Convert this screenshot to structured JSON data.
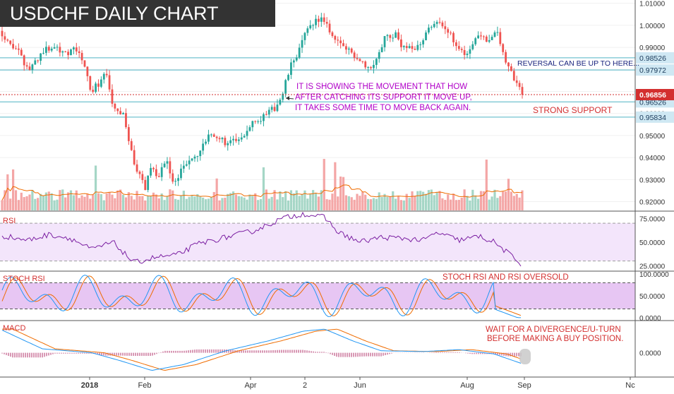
{
  "title": "USDCHF DAILY CHART",
  "colors": {
    "bull": "#26a69a",
    "bear": "#ef5350",
    "bull_vol": "#a5d6c6",
    "bear_vol": "#f4a6a6",
    "hline": "#4fb3c4",
    "price_tag": "#d32f2f",
    "level_tag": "#cfe8f3",
    "rsi_line": "#7b1fa2",
    "rsi_band": "#f3e5fb",
    "stoch_band": "#e7c6f3",
    "stoch_k": "#2196f3",
    "stoch_d": "#ef6c00",
    "macd_line": "#2196f3",
    "signal_line": "#ef6c00",
    "histogram": "#b0306a",
    "annotation_purple": "#b000c8",
    "annotation_red": "#d32f2f",
    "annotation_navy": "#1a237e"
  },
  "annotations": {
    "movement_line1": "IT IS SHOWING THE MOVEMENT THAT HOW",
    "movement_line2": "AFTER CATCHING ITS SUPPORT IT MOVE UP,",
    "movement_line3": "IT TAKES SOME TIME TO MOVE BACK AGAIN.",
    "reversal": "REVERSAL CAN BE UP TO HERE...",
    "strong_support": "STRONG SUPPORT",
    "stoch_note": "STOCH RSI AND RSI OVERSOLD",
    "macd_line1": "WAIT FOR A DIVERGENCE/U-TURN",
    "macd_line2": "BEFORE MAKING A BUY POSITION."
  },
  "chart_data": [
    {
      "type": "candlestick",
      "title": "USDCHF DAILY CHART",
      "ylim": [
        0.916,
        1.0115
      ],
      "y_ticks": [
        "1.01000",
        "1.00000",
        "0.99000",
        "0.98000",
        "0.97000",
        "0.96000",
        "0.95000",
        "0.94000",
        "0.93000",
        "0.92000"
      ],
      "x_ticks": [
        "2018",
        "Feb",
        "Apr",
        "2",
        "Jun",
        "Aug",
        "Sep",
        "Nc"
      ],
      "price_path": [
        [
          0,
          0.9975
        ],
        [
          10,
          0.994
        ],
        [
          25,
          0.988
        ],
        [
          40,
          0.9795
        ],
        [
          60,
          0.988
        ],
        [
          75,
          0.9905
        ],
        [
          95,
          0.988
        ],
        [
          110,
          0.989
        ],
        [
          120,
          0.98
        ],
        [
          130,
          0.97
        ],
        [
          150,
          0.978
        ],
        [
          162,
          0.961
        ],
        [
          175,
          0.959
        ],
        [
          185,
          0.944
        ],
        [
          195,
          0.933
        ],
        [
          205,
          0.926
        ],
        [
          215,
          0.937
        ],
        [
          225,
          0.931
        ],
        [
          235,
          0.94
        ],
        [
          245,
          0.928
        ],
        [
          260,
          0.936
        ],
        [
          280,
          0.941
        ],
        [
          300,
          0.951
        ],
        [
          320,
          0.947
        ],
        [
          340,
          0.947
        ],
        [
          360,
          0.958
        ],
        [
          375,
          0.958
        ],
        [
          390,
          0.963
        ],
        [
          400,
          0.968
        ],
        [
          410,
          0.98
        ],
        [
          425,
          0.99
        ],
        [
          440,
          1.001
        ],
        [
          455,
          1.003
        ],
        [
          470,
          0.996
        ],
        [
          490,
          0.989
        ],
        [
          510,
          0.985
        ],
        [
          525,
          0.98
        ],
        [
          545,
          0.994
        ],
        [
          560,
          0.996
        ],
        [
          575,
          0.988
        ],
        [
          595,
          0.992
        ],
        [
          615,
          1.002
        ],
        [
          630,
          0.998
        ],
        [
          645,
          0.993
        ],
        [
          660,
          0.986
        ],
        [
          675,
          0.996
        ],
        [
          690,
          0.994
        ],
        [
          705,
          0.996
        ],
        [
          715,
          0.986
        ],
        [
          725,
          0.978
        ],
        [
          740,
          0.9685
        ]
      ],
      "horizontal_levels": [
        {
          "value": 0.98526,
          "label": "0.98526"
        },
        {
          "value": 0.97972,
          "label": "0.97972"
        },
        {
          "value": 0.96526,
          "label": "0.96526"
        },
        {
          "value": 0.95834,
          "label": "0.95834"
        }
      ],
      "last_price": {
        "value": 0.96856,
        "label": "0.96856"
      }
    },
    {
      "type": "line",
      "title": "RSI",
      "ylim": [
        20,
        82
      ],
      "y_ticks": [
        "75.0000",
        "50.0000",
        "25.0000"
      ],
      "bands": [
        30,
        70
      ],
      "path": [
        [
          0,
          57
        ],
        [
          40,
          52
        ],
        [
          70,
          58
        ],
        [
          100,
          54
        ],
        [
          130,
          42
        ],
        [
          160,
          50
        ],
        [
          190,
          28
        ],
        [
          220,
          34
        ],
        [
          250,
          36
        ],
        [
          280,
          48
        ],
        [
          320,
          55
        ],
        [
          360,
          62
        ],
        [
          400,
          75
        ],
        [
          430,
          80
        ],
        [
          460,
          76
        ],
        [
          480,
          60
        ],
        [
          510,
          50
        ],
        [
          540,
          55
        ],
        [
          570,
          54
        ],
        [
          600,
          52
        ],
        [
          620,
          60
        ],
        [
          650,
          52
        ],
        [
          680,
          56
        ],
        [
          700,
          50
        ],
        [
          720,
          38
        ],
        [
          740,
          26
        ]
      ]
    },
    {
      "type": "line",
      "title": "STOCH RSI",
      "ylim": [
        -5,
        105
      ],
      "y_ticks": [
        "100.0000",
        "50.0000",
        "0.0000"
      ],
      "bands": [
        20,
        80
      ]
    },
    {
      "type": "line",
      "title": "MACD",
      "ylim": [
        -0.006,
        0.008
      ],
      "y_ticks": [
        "0.0000"
      ]
    }
  ]
}
